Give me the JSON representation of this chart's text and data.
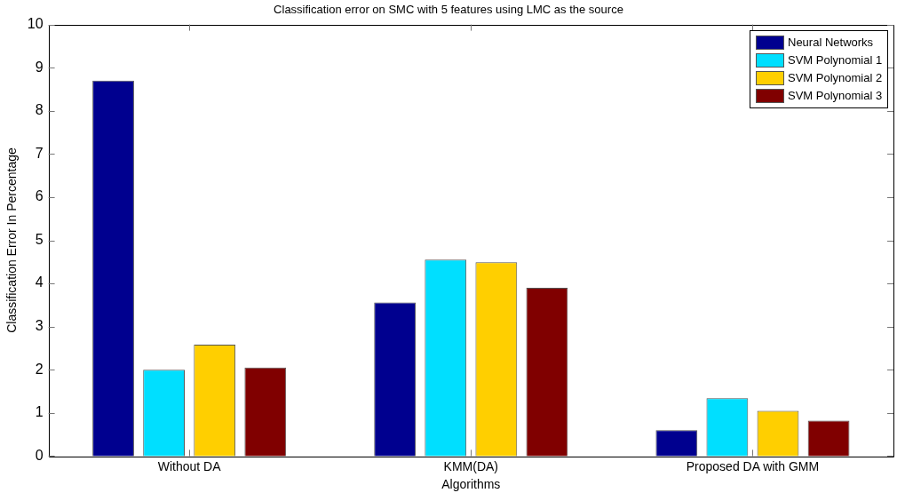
{
  "chart_data": {
    "type": "bar",
    "title": "Classification error on SMC with 5 features using LMC as the source",
    "xlabel": "Algorithms",
    "ylabel": "Classification Error In Percentage",
    "categories": [
      "Without DA",
      "KMM(DA)",
      "Proposed DA with GMM"
    ],
    "series": [
      {
        "name": "Neural Networks",
        "color": "#00008f",
        "values": [
          8.7,
          3.56,
          0.6
        ]
      },
      {
        "name": "SVM Polynomial 1",
        "color": "#00dfff",
        "values": [
          2.0,
          4.55,
          1.34
        ]
      },
      {
        "name": "SVM Polynomial 2",
        "color": "#ffcf00",
        "values": [
          2.58,
          4.49,
          1.05
        ]
      },
      {
        "name": "SVM Polynomial 3",
        "color": "#800000",
        "values": [
          2.05,
          3.9,
          0.82
        ]
      }
    ],
    "ylim": [
      0,
      10
    ],
    "yticks": [
      0,
      1,
      2,
      3,
      4,
      5,
      6,
      7,
      8,
      9,
      10
    ],
    "grid": false,
    "legend": "top right"
  }
}
